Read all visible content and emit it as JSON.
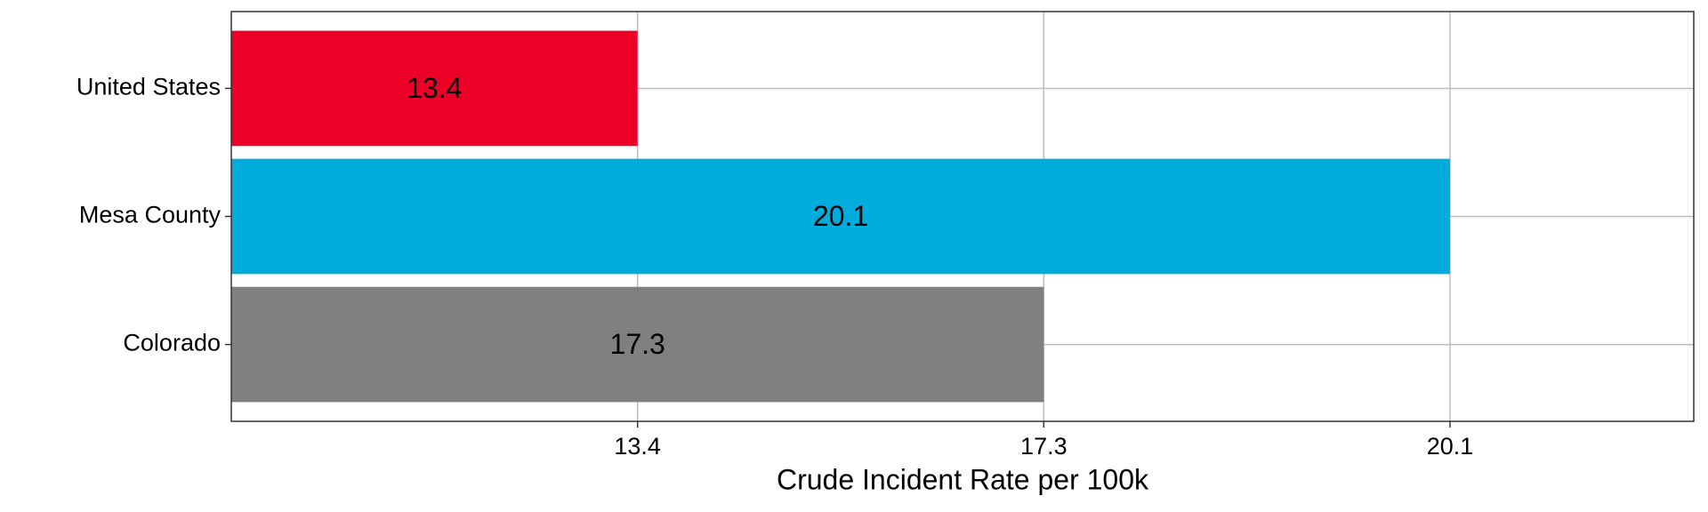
{
  "chart_data": {
    "type": "barh",
    "x_label": "Crude Incident Rate per 100k",
    "categories": [
      "United States",
      "Mesa County",
      "Colorado"
    ],
    "values": [
      13.4,
      20.1,
      17.3
    ],
    "colors": [
      "#ec0028",
      "#00acdc",
      "#808080"
    ],
    "x_scale": "ordinal",
    "xticks": [
      13.4,
      17.3,
      20.1
    ],
    "grid": true
  }
}
